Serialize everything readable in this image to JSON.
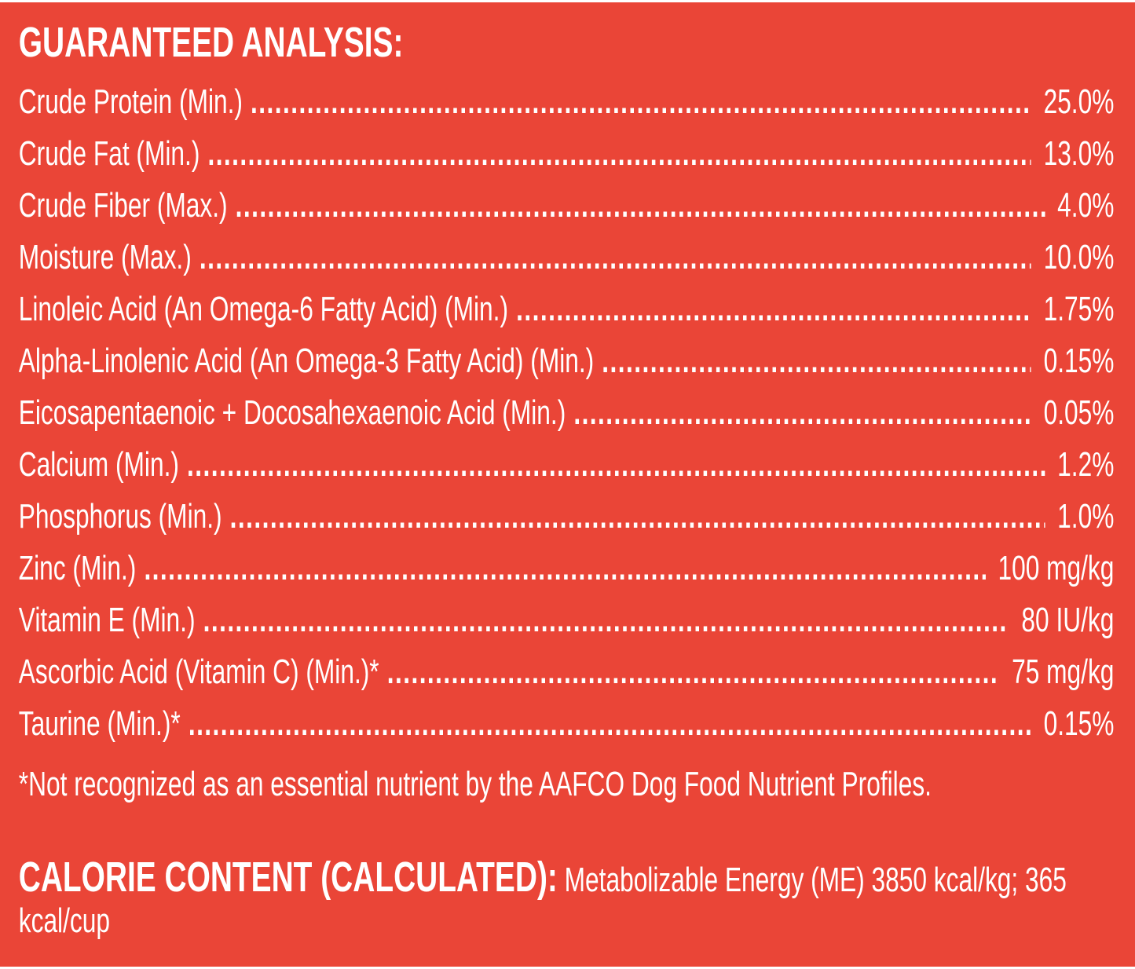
{
  "title": "GUARANTEED ANALYSIS:",
  "rows": [
    {
      "label": "Crude Protein (Min.)",
      "value": "25.0%"
    },
    {
      "label": "Crude Fat (Min.)",
      "value": "13.0%"
    },
    {
      "label": "Crude Fiber (Max.)",
      "value": "4.0%"
    },
    {
      "label": "Moisture  (Max.)",
      "value": "10.0%"
    },
    {
      "label": "Linoleic Acid (An Omega-6 Fatty Acid) (Min.)",
      "value": "1.75%"
    },
    {
      "label": "Alpha-Linolenic Acid (An Omega-3 Fatty Acid) (Min.)",
      "value": "0.15%"
    },
    {
      "label": "Eicosapentaenoic + Docosahexaenoic Acid (Min.)",
      "value": "0.05%"
    },
    {
      "label": "Calcium (Min.)",
      "value": "1.2%"
    },
    {
      "label": "Phosphorus (Min.)",
      "value": "1.0%"
    },
    {
      "label": "Zinc (Min.)",
      "value": "100 mg/kg"
    },
    {
      "label": "Vitamin E (Min.)",
      "value": "80 IU/kg"
    },
    {
      "label": "Ascorbic Acid (Vitamin C) (Min.)*",
      "value": "75 mg/kg"
    },
    {
      "label": "Taurine (Min.)*",
      "value": "0.15%"
    }
  ],
  "footnote": "*Not recognized as an essential nutrient by the AAFCO Dog Food Nutrient Profiles.",
  "calorie": {
    "heading": "CALORIE CONTENT (CALCULATED):",
    "text": " Metabolizable Energy (ME) 3850 kcal/kg; 365 kcal/cup"
  },
  "colors": {
    "background": "#ea4537",
    "text": "#ffffff"
  }
}
